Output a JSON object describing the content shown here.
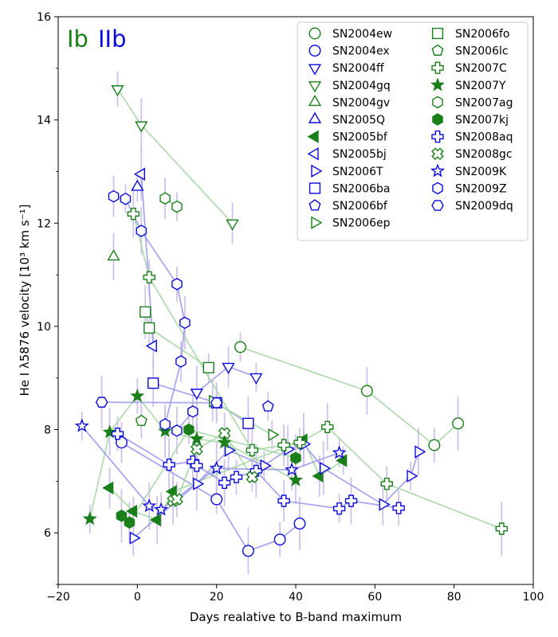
{
  "chart_data": {
    "type": "scatter",
    "xlabel": "Days realative to B-band maximum",
    "ylabel": "He I λ5876 velocity [10³ km s⁻¹]",
    "xlim": [
      -20,
      100
    ],
    "ylim": [
      5,
      16
    ],
    "xticks": [
      -20,
      0,
      20,
      40,
      60,
      80,
      100
    ],
    "yticks": [
      6,
      8,
      10,
      12,
      14,
      16
    ],
    "tag_ib": "Ib",
    "tag_iib": "IIb",
    "colors": {
      "Ib": "#0a0adc",
      "IIb": "#1a7f1a",
      "line_Ib": "#9a9ae8",
      "line_IIb": "#a6d6a6",
      "errbar": "#c8b8e8"
    },
    "legend_position": "top-right",
    "series": [
      {
        "name": "SN2004ew",
        "type": "IIb",
        "marker": "circle",
        "filled": false,
        "points": [
          [
            26,
            9.6
          ],
          [
            58,
            8.75
          ],
          [
            75,
            7.7
          ],
          [
            81,
            8.12
          ]
        ]
      },
      {
        "name": "SN2004ex",
        "type": "Ib",
        "marker": "circle",
        "filled": false,
        "points": [
          [
            -4,
            7.75
          ],
          [
            20,
            6.65
          ],
          [
            28,
            5.65
          ],
          [
            36,
            5.87
          ],
          [
            41,
            6.18
          ]
        ]
      },
      {
        "name": "SN2004ff",
        "type": "Ib",
        "marker": "triangle-down",
        "filled": false,
        "points": [
          [
            15,
            8.72
          ],
          [
            23,
            9.22
          ],
          [
            30,
            9.02
          ]
        ]
      },
      {
        "name": "SN2004gq",
        "type": "IIb",
        "marker": "triangle-down",
        "filled": false,
        "points": [
          [
            -5,
            14.6
          ],
          [
            1,
            13.9
          ],
          [
            24,
            12.0
          ]
        ]
      },
      {
        "name": "SN2004gv",
        "type": "IIb",
        "marker": "triangle-up",
        "filled": false,
        "points": [
          [
            -6,
            11.35
          ]
        ]
      },
      {
        "name": "SN2005Q",
        "type": "Ib",
        "marker": "triangle-up",
        "filled": false,
        "points": [
          [
            0,
            12.7
          ]
        ]
      },
      {
        "name": "SN2005bf",
        "type": "IIb",
        "marker": "triangle-left",
        "filled": true,
        "points": [
          [
            -7,
            6.87
          ],
          [
            -1,
            6.42
          ],
          [
            5,
            6.25
          ],
          [
            9,
            6.8
          ],
          [
            42,
            7.8
          ],
          [
            46,
            7.1
          ],
          [
            52,
            7.4
          ]
        ]
      },
      {
        "name": "SN2005bj",
        "type": "Ib",
        "marker": "triangle-left",
        "filled": false,
        "points": [
          [
            1,
            12.95
          ],
          [
            4,
            9.62
          ]
        ]
      },
      {
        "name": "SN2006T",
        "type": "Ib",
        "marker": "triangle-right",
        "filled": false,
        "points": [
          [
            -1,
            5.9
          ],
          [
            15,
            6.95
          ],
          [
            23,
            7.6
          ],
          [
            32,
            7.3
          ],
          [
            38,
            7.62
          ],
          [
            42,
            7.72
          ],
          [
            47,
            7.25
          ],
          [
            62,
            6.55
          ],
          [
            69,
            7.1
          ],
          [
            71,
            7.57
          ]
        ]
      },
      {
        "name": "SN2006ba",
        "type": "Ib",
        "marker": "square",
        "filled": false,
        "points": [
          [
            4,
            8.9
          ],
          [
            20,
            8.52
          ],
          [
            28,
            8.12
          ]
        ]
      },
      {
        "name": "SN2006bf",
        "type": "Ib",
        "marker": "pentagon",
        "filled": false,
        "points": [
          [
            33,
            8.45
          ]
        ]
      },
      {
        "name": "SN2006ep",
        "type": "IIb",
        "marker": "triangle-right",
        "filled": false,
        "points": [
          [
            19,
            8.55
          ],
          [
            34,
            7.9
          ]
        ]
      },
      {
        "name": "SN2006fo",
        "type": "IIb",
        "marker": "square",
        "filled": false,
        "points": [
          [
            2,
            10.28
          ],
          [
            3,
            9.97
          ],
          [
            18,
            9.2
          ]
        ]
      },
      {
        "name": "SN2006lc",
        "type": "IIb",
        "marker": "pentagon",
        "filled": false,
        "points": [
          [
            1,
            8.17
          ]
        ]
      },
      {
        "name": "SN2007C",
        "type": "IIb",
        "marker": "plus",
        "filled": false,
        "points": [
          [
            -1,
            12.18
          ],
          [
            3,
            10.95
          ],
          [
            29,
            7.6
          ],
          [
            37,
            7.7
          ],
          [
            41,
            7.75
          ],
          [
            48,
            8.05
          ],
          [
            63,
            6.95
          ],
          [
            92,
            6.08
          ]
        ]
      },
      {
        "name": "SN2007Y",
        "type": "IIb",
        "marker": "star",
        "filled": true,
        "points": [
          [
            -12,
            6.27
          ],
          [
            -7,
            7.95
          ],
          [
            0,
            8.65
          ],
          [
            7,
            7.97
          ],
          [
            15,
            7.82
          ],
          [
            22,
            7.75
          ],
          [
            40,
            7.02
          ]
        ]
      },
      {
        "name": "SN2007ag",
        "type": "IIb",
        "marker": "hexagon",
        "filled": false,
        "points": [
          [
            7,
            12.48
          ],
          [
            10,
            12.32
          ]
        ]
      },
      {
        "name": "SN2007kj",
        "type": "IIb",
        "marker": "hexagon",
        "filled": true,
        "points": [
          [
            -4,
            6.33
          ],
          [
            -2,
            6.2
          ],
          [
            13,
            8.0
          ],
          [
            40,
            7.45
          ]
        ]
      },
      {
        "name": "SN2008aq",
        "type": "Ib",
        "marker": "plus",
        "filled": false,
        "points": [
          [
            -5,
            7.92
          ],
          [
            8,
            7.32
          ],
          [
            14,
            7.38
          ],
          [
            15,
            7.3
          ],
          [
            22,
            6.97
          ],
          [
            25,
            7.08
          ],
          [
            30,
            7.2
          ],
          [
            37,
            6.62
          ],
          [
            51,
            6.47
          ],
          [
            54,
            6.62
          ],
          [
            66,
            6.48
          ]
        ]
      },
      {
        "name": "SN2008gc",
        "type": "IIb",
        "marker": "x",
        "filled": false,
        "points": [
          [
            9,
            6.62
          ],
          [
            10,
            6.65
          ],
          [
            15,
            7.62
          ],
          [
            22,
            7.93
          ],
          [
            29,
            7.08
          ]
        ]
      },
      {
        "name": "SN2009K",
        "type": "Ib",
        "marker": "star",
        "filled": false,
        "points": [
          [
            -14,
            8.07
          ],
          [
            3,
            6.52
          ],
          [
            6,
            6.45
          ],
          [
            20,
            7.25
          ],
          [
            39,
            7.22
          ],
          [
            51,
            7.55
          ]
        ]
      },
      {
        "name": "SN2009Z",
        "type": "Ib",
        "marker": "hexagon",
        "filled": false,
        "points": [
          [
            -6,
            12.52
          ],
          [
            -3,
            12.47
          ],
          [
            1,
            11.85
          ],
          [
            10,
            10.82
          ],
          [
            12,
            10.07
          ],
          [
            11,
            9.32
          ],
          [
            7,
            8.1
          ],
          [
            10,
            7.98
          ],
          [
            14,
            8.35
          ]
        ]
      },
      {
        "name": "SN2009dq",
        "type": "Ib",
        "marker": "hexagon-h",
        "filled": false,
        "points": [
          [
            -9,
            8.53
          ],
          [
            20,
            8.52
          ]
        ]
      }
    ]
  }
}
